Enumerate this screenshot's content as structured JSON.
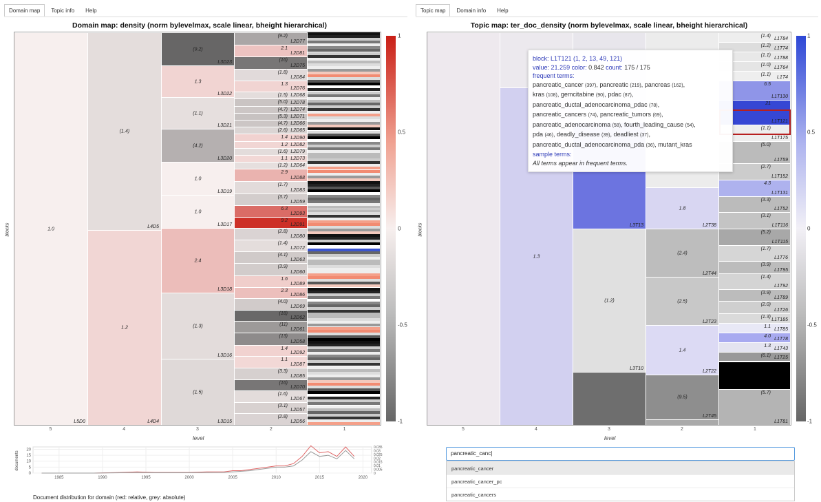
{
  "left": {
    "tabs": [
      "Domain map",
      "Topic info",
      "Help"
    ],
    "title": "Domain map: density (norm bylevelmax, scale linear, bheight hierarchical)",
    "ylabel": "blocks",
    "xlabel": "level",
    "xticks": [
      "5",
      "4",
      "3",
      "2",
      "1"
    ],
    "colorbar_ticks": [
      "1",
      "0.5",
      "0",
      "-0.5",
      "-1"
    ],
    "level5": [
      {
        "v": "1.0",
        "l": "L5D0"
      }
    ],
    "level4": [
      {
        "v": "(1.4)",
        "l": "L4D5"
      },
      {
        "v": "1.2",
        "l": "L4D4"
      }
    ],
    "level3": [
      {
        "v": "(9.2)",
        "l": "L3D23"
      },
      {
        "v": "1.3",
        "l": "L3D22"
      },
      {
        "v": "(1.1)",
        "l": "L3D21"
      },
      {
        "v": "(4.2)",
        "l": "L3D20"
      },
      {
        "v": "1.0",
        "l": "L3D19"
      },
      {
        "v": "1.0",
        "l": "L3D17"
      },
      {
        "v": "2.4",
        "l": "L3D18"
      },
      {
        "v": "(1.3)",
        "l": "L3D16"
      },
      {
        "v": "(1.5)",
        "l": "L3D15"
      }
    ],
    "level2": [
      {
        "v": "(9.2)",
        "l": "L2D77"
      },
      {
        "v": "2.1",
        "l": "L2D81"
      },
      {
        "v": "(16)",
        "l": "L2D75"
      },
      {
        "v": "(1.8)",
        "l": "L2D84"
      },
      {
        "v": "1.3",
        "l": "L2D76"
      },
      {
        "v": "(1.5)",
        "l": "L2D68"
      },
      {
        "v": "(5.0)",
        "l": "L2D78"
      },
      {
        "v": "(4.7)",
        "l": "L2D74"
      },
      {
        "v": "(5.3)",
        "l": "L2D71"
      },
      {
        "v": "(4.7)",
        "l": "L2D66"
      },
      {
        "v": "(2.6)",
        "l": "L2D65"
      },
      {
        "v": "1.4",
        "l": "L2D90"
      },
      {
        "v": "1.2",
        "l": "L2D82"
      },
      {
        "v": "(1.6)",
        "l": "L2D79"
      },
      {
        "v": "1.1",
        "l": "L2D73"
      },
      {
        "v": "(1.2)",
        "l": "L2D64"
      },
      {
        "v": "2.9",
        "l": "L2D88"
      },
      {
        "v": "(1.7)",
        "l": "L2D83"
      },
      {
        "v": "(3.7)",
        "l": "L2D59"
      },
      {
        "v": "6.3",
        "l": "L2D93"
      },
      {
        "v": "9.2",
        "l": "L2D91"
      },
      {
        "v": "(2.8)",
        "l": "L2D80"
      },
      {
        "v": "(1.4)",
        "l": "L2D72"
      },
      {
        "v": "(4.1)",
        "l": "L2D63"
      },
      {
        "v": "(3.9)",
        "l": "L2D60"
      },
      {
        "v": "1.6",
        "l": "L2D89"
      },
      {
        "v": "2.3",
        "l": "L2D86"
      },
      {
        "v": "(4.0)",
        "l": "L2D69"
      },
      {
        "v": "(18)",
        "l": "L2D62"
      },
      {
        "v": "(11)",
        "l": "L2D61"
      },
      {
        "v": "(13)",
        "l": "L2D58"
      },
      {
        "v": "1.4",
        "l": "L2D92"
      },
      {
        "v": "1.1",
        "l": "L2D87"
      },
      {
        "v": "(3.3)",
        "l": "L2D85"
      },
      {
        "v": "(16)",
        "l": "L2D70"
      },
      {
        "v": "(1.6)",
        "l": "L2D67"
      },
      {
        "v": "(3.1)",
        "l": "L2D57"
      },
      {
        "v": "(2.8)",
        "l": "L2D56"
      }
    ],
    "chart_data": {
      "type": "line",
      "xlabel": "FY",
      "ylabel": "documents",
      "x_ticks": [
        "1985",
        "1990",
        "1995",
        "2000",
        "2005",
        "2010",
        "2015",
        "2020"
      ],
      "y_ticks_left": [
        "0",
        "5",
        "10",
        "15",
        "20"
      ],
      "y_ticks_right": [
        "0",
        "0.005",
        "0.01",
        "0.015",
        "0.02",
        "0.025",
        "0.03",
        "0.035"
      ],
      "title": "Document distribution for domain (red: relative, grey: absolute)",
      "series": [
        {
          "name": "red: relative",
          "color": "#e06666",
          "x": [
            1983,
            1986,
            1989,
            1992,
            1994,
            1996,
            1998,
            2000,
            2002,
            2004,
            2005,
            2006,
            2007,
            2008,
            2009,
            2010,
            2011,
            2012,
            2013,
            2014,
            2015,
            2016,
            2017,
            2018,
            2019
          ],
          "y": [
            0,
            0,
            0,
            0.5,
            1,
            0.5,
            0.5,
            0.5,
            1,
            1,
            2,
            2,
            3,
            4,
            5,
            6,
            6,
            8,
            14,
            23,
            17,
            18,
            14,
            22,
            14
          ]
        },
        {
          "name": "grey: absolute",
          "color": "#999999",
          "x": [
            1983,
            1986,
            1989,
            1992,
            1994,
            1996,
            1998,
            2000,
            2002,
            2004,
            2005,
            2006,
            2007,
            2008,
            2009,
            2010,
            2011,
            2012,
            2013,
            2014,
            2015,
            2016,
            2017,
            2018,
            2019
          ],
          "y": [
            0,
            0,
            0,
            0.3,
            0.5,
            0.3,
            0.3,
            0.3,
            0.5,
            0.6,
            1,
            1.5,
            2,
            3,
            4,
            5,
            5,
            6,
            11,
            18,
            14,
            15,
            12,
            19,
            12
          ]
        }
      ]
    }
  },
  "right": {
    "tabs": [
      "Topic map",
      "Domain info",
      "Help"
    ],
    "title": "Topic map: ter_doc_density (norm bylevelmax, scale linear, bheight hierarchical)",
    "ylabel": "blocks",
    "xlabel": "level",
    "xticks": [
      "5",
      "4",
      "3",
      "2",
      "1"
    ],
    "colorbar_ticks": [
      "1",
      "0.5",
      "0",
      "-0.5",
      "-1"
    ],
    "level4": [
      {
        "v": "1.3",
        "l": ""
      }
    ],
    "level3": [
      {
        "v": "",
        "l": "L3T13"
      },
      {
        "v": "(1.2)",
        "l": "L3T10"
      }
    ],
    "level2": [
      {
        "v": "1.8",
        "l": "L2T38"
      },
      {
        "v": "(2.4)",
        "l": "L2T44"
      },
      {
        "v": "(2.5)",
        "l": "L2T23"
      },
      {
        "v": "1.4",
        "l": "L2T22"
      },
      {
        "v": "(9.5)",
        "l": "L2T45"
      }
    ],
    "level1": [
      {
        "v": "(1.4)",
        "l": "L1T84"
      },
      {
        "v": "(1.2)",
        "l": "L1T74"
      },
      {
        "v": "(1.1)",
        "l": "L1T88"
      },
      {
        "v": "(1.0)",
        "l": "L1T64"
      },
      {
        "v": "(1.1)",
        "l": "L1T4"
      },
      {
        "v": "6.5",
        "l": "L1T130"
      },
      {
        "v": "21",
        "l": "L1T121"
      },
      {
        "v": "(1.1)",
        "l": "L1T175"
      },
      {
        "v": "(5.0)",
        "l": "L1T59"
      },
      {
        "v": "(2.7)",
        "l": "L1T152"
      },
      {
        "v": "4.3",
        "l": "L1T131"
      },
      {
        "v": "(3.3)",
        "l": "L1T52"
      },
      {
        "v": "(3.1)",
        "l": "L1T116"
      },
      {
        "v": "(5.2)",
        "l": "L1T115"
      },
      {
        "v": "(1.7)",
        "l": "L1T76"
      },
      {
        "v": "(3.9)",
        "l": "L1T95"
      },
      {
        "v": "(1.4)",
        "l": "L1T92"
      },
      {
        "v": "(3.9)",
        "l": "L1T89"
      },
      {
        "v": "(2.0)",
        "l": "L1T26"
      },
      {
        "v": "(1.3)",
        "l": "L1T185"
      },
      {
        "v": "1.1",
        "l": "L1T85"
      },
      {
        "v": "4.0",
        "l": "L1T78"
      },
      {
        "v": "1.3",
        "l": "L1T43"
      },
      {
        "v": "(6.1)",
        "l": "L1T25"
      },
      {
        "v": "",
        "l": ""
      },
      {
        "v": "(5.7)",
        "l": "L1T81"
      }
    ],
    "tooltip": {
      "block_label": "block:",
      "block_value": "L1T121 (1, 2, 13, 49, 121)",
      "value_label": "value:",
      "value_value": "21.259",
      "color_label": "color:",
      "color_value": "0.842",
      "count_label": "count:",
      "count_value": "175 / 175",
      "frequent_label": "frequent terms:",
      "frequent_lines": [
        "pancreatic_cancer (397), pancreatic (219), pancreas (162),",
        "kras (108), gemcitabine (90), pdac (87),",
        "pancreatic_ductal_adenocarcinoma_pdac (78),",
        "pancreatic_cancers (74), pancreatic_tumors (69),",
        "pancreatic_adenocarcinoma (58), fourth_leading_cause (54),",
        "pda (46), deadly_disease (39), deadliest (37),",
        "pancreatic_ductal_adenocarcinoma_pda (36), mutant_kras"
      ],
      "sample_label": "sample terms:",
      "sample_text": "All terms appear in frequent terms."
    },
    "search": {
      "value": "pancreatic_canc|",
      "suggestions": [
        "pancreatic_cancer",
        "pancreatic_cancer_pc",
        "pancreatic_cancers"
      ]
    }
  }
}
